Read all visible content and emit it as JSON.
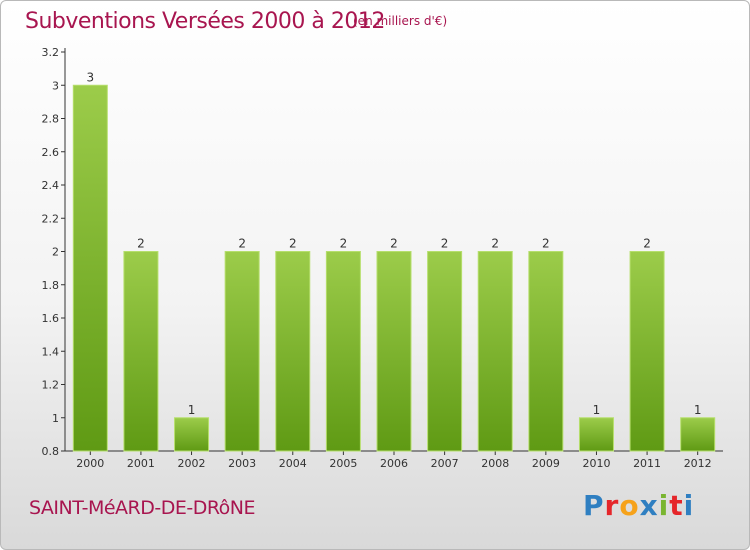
{
  "header": {
    "title": "Subventions Versées 2000 à 2012",
    "unit": "(en milliers d'€)"
  },
  "footer": {
    "commune": "SAINT-MéARD-DE-DRôNE",
    "logo": "Proxiti",
    "logo_letter_colors": [
      "#2f7fc1",
      "#e5262a",
      "#f6a21a",
      "#2f7fc1",
      "#79b530",
      "#e5262a",
      "#2f7fc1"
    ]
  },
  "colors": {
    "bar_light": "#9ccc4a",
    "bar_dark": "#5f9a14",
    "accent": "#a8154f"
  },
  "chart_data": {
    "type": "bar",
    "title": "Subventions Versées 2000 à 2012",
    "xlabel": "",
    "ylabel": "",
    "categories": [
      "2000",
      "2001",
      "2002",
      "2003",
      "2004",
      "2005",
      "2006",
      "2007",
      "2008",
      "2009",
      "2010",
      "2011",
      "2012"
    ],
    "values": [
      3,
      2,
      1,
      2,
      2,
      2,
      2,
      2,
      2,
      2,
      1,
      2,
      1
    ],
    "ylim": [
      0.8,
      3.2
    ],
    "yticks": [
      0.8,
      1,
      1.2,
      1.4,
      1.6,
      1.8,
      2,
      2.2,
      2.4,
      2.6,
      2.8,
      3,
      3.2
    ],
    "ytick_labels": [
      "0.8",
      "1",
      "1.2",
      "1.4",
      "1.6",
      "1.8",
      "2",
      "2.2",
      "2.4",
      "2.6",
      "2.8",
      "3",
      "3.2"
    ],
    "grid": false,
    "legend": "none"
  }
}
